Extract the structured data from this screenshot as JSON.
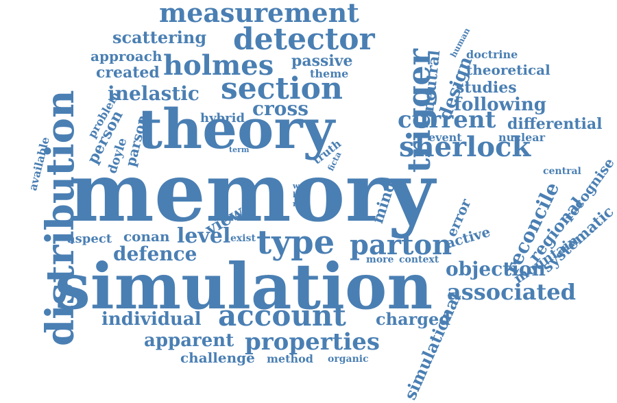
{
  "color": "#4a7fb3",
  "words": [
    "memory",
    "simulation",
    "theory",
    "distribution",
    "trigger",
    "section",
    "holmes",
    "measurement",
    "detector",
    "sherlock",
    "account",
    "parton",
    "properties",
    "type",
    "current",
    "associated",
    "cross",
    "inelastic",
    "scattering",
    "objection",
    "defence",
    "individual",
    "level",
    "apparent",
    "reconcile",
    "following",
    "regional",
    "charged",
    "passive",
    "created",
    "approach",
    "design",
    "studies",
    "theoretical",
    "differential",
    "neutral",
    "simulational",
    "challenge",
    "conan",
    "view",
    "mind",
    "person",
    "doyle",
    "parson",
    "problem",
    "available",
    "mountain",
    "recognise",
    "systematic",
    "error",
    "active",
    "aspect",
    "method",
    "organic",
    "context",
    "more",
    "exist",
    "hybrid",
    "theme",
    "event",
    "nuclear",
    "doctrine",
    "human",
    "central",
    "truth",
    "ficta",
    "term",
    "way",
    "bias",
    "role"
  ]
}
